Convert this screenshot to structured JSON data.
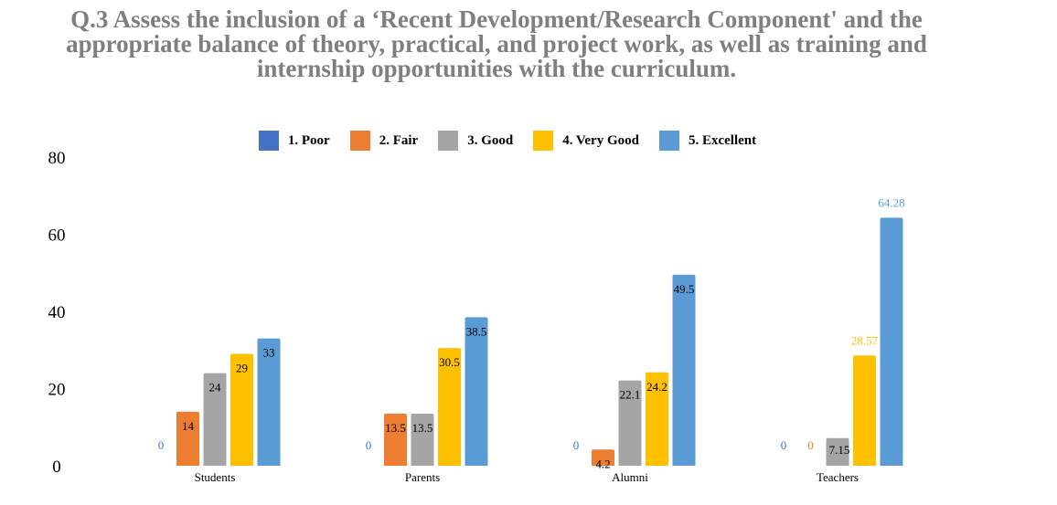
{
  "title_lines": [
    "Q.3 Assess the inclusion of a ‘Recent Development/Research Component' and the",
    "appropriate balance of theory, practical, and project work, as well as training and",
    "internship opportunities with the curriculum."
  ],
  "chart_data": {
    "type": "bar",
    "title": "Q.3 Assess the inclusion of a ‘Recent Development/Research Component' and the appropriate balance of theory, practical, and project work, as well as training and internship opportunities with the curriculum.",
    "categories": [
      "Students",
      "Parents",
      "Alumni",
      "Teachers"
    ],
    "series": [
      {
        "name": "1.  Poor",
        "color": "#4472c4",
        "values": [
          0,
          0,
          0,
          0
        ],
        "labels": [
          "0",
          "0",
          "0",
          "0"
        ]
      },
      {
        "name": "2.  Fair",
        "color": "#ed7d31",
        "values": [
          14,
          13.5,
          4.2,
          0
        ],
        "labels": [
          "14",
          "13.5",
          "4.2",
          "0"
        ]
      },
      {
        "name": "3.  Good",
        "color": "#a5a5a5",
        "values": [
          24,
          13.5,
          22.1,
          7.15
        ],
        "labels": [
          "24",
          "13.5",
          "22.1",
          "7.15"
        ]
      },
      {
        "name": "4.  Very Good",
        "color": "#ffc000",
        "values": [
          29,
          30.5,
          24.2,
          28.57
        ],
        "labels": [
          "29",
          "30.5",
          "24.2",
          "28.57"
        ]
      },
      {
        "name": "5.  Excellent",
        "color": "#5b9bd5",
        "values": [
          33,
          38.5,
          49.5,
          64.28
        ],
        "labels": [
          "33",
          "38.5",
          "49.5",
          "64.28"
        ]
      }
    ],
    "yticks": [
      "0",
      "20",
      "40",
      "60",
      "80"
    ],
    "ylim": [
      0,
      80
    ],
    "grid": false,
    "legend_position": "top"
  }
}
